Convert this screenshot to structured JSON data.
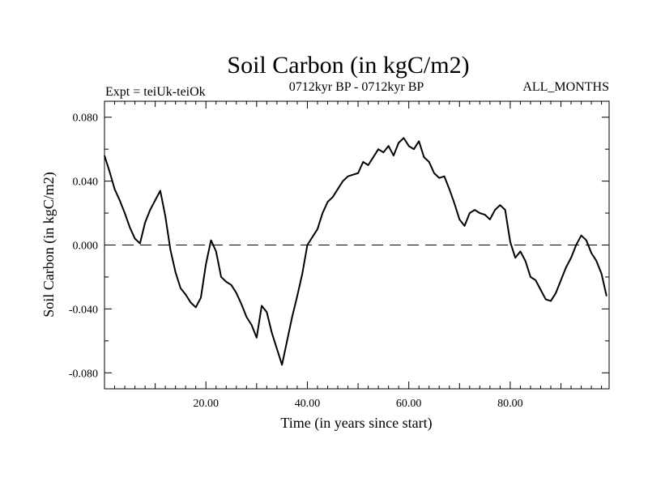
{
  "chart_data": {
    "type": "line",
    "title": "Soil Carbon (in kgC/m2)",
    "subtitle_left": "Expt = teiUk-teiOk",
    "subtitle_center": "0712kyr BP - 0712kyr BP",
    "subtitle_right": "ALL_MONTHS",
    "xlabel": "Time (in years since start)",
    "ylabel": "Soil Carbon (in kgC/m2)",
    "xlim": [
      0,
      99.5
    ],
    "ylim": [
      -0.09,
      0.09
    ],
    "xticks": [
      20,
      40,
      60,
      80
    ],
    "xtick_labels": [
      "20.00",
      "40.00",
      "60.00",
      "80.00"
    ],
    "yticks": [
      -0.08,
      -0.04,
      0.0,
      0.04,
      0.08
    ],
    "ytick_labels": [
      "-0.080",
      "-0.040",
      "0.000",
      "0.040",
      "0.080"
    ],
    "reference_line": {
      "y": 0.0,
      "style": "dashed"
    },
    "grid": false,
    "series": [
      {
        "color": "#000000",
        "x": [
          0,
          1,
          2,
          3,
          4,
          5,
          6,
          7,
          8,
          9,
          10,
          11,
          12,
          13,
          14,
          15,
          16,
          17,
          18,
          19,
          20,
          21,
          22,
          23,
          24,
          25,
          26,
          27,
          28,
          29,
          30,
          31,
          32,
          33,
          34,
          35,
          36,
          37,
          38,
          39,
          40,
          41,
          42,
          43,
          44,
          45,
          46,
          47,
          48,
          49,
          50,
          51,
          52,
          53,
          54,
          55,
          56,
          57,
          58,
          59,
          60,
          61,
          62,
          63,
          64,
          65,
          66,
          67,
          68,
          69,
          70,
          71,
          72,
          73,
          74,
          75,
          76,
          77,
          78,
          79,
          80,
          81,
          82,
          83,
          84,
          85,
          86,
          87,
          88,
          89,
          90,
          91,
          92,
          93,
          94,
          95,
          96,
          97,
          98,
          99
        ],
        "y": [
          0.056,
          0.046,
          0.035,
          0.028,
          0.02,
          0.011,
          0.004,
          0.001,
          0.014,
          0.022,
          0.028,
          0.034,
          0.018,
          -0.003,
          -0.017,
          -0.027,
          -0.031,
          -0.036,
          -0.039,
          -0.033,
          -0.012,
          0.003,
          -0.004,
          -0.02,
          -0.023,
          -0.025,
          -0.03,
          -0.037,
          -0.045,
          -0.05,
          -0.058,
          -0.038,
          -0.042,
          -0.055,
          -0.065,
          -0.075,
          -0.06,
          -0.045,
          -0.032,
          -0.018,
          0.0,
          0.005,
          0.01,
          0.02,
          0.027,
          0.03,
          0.035,
          0.04,
          0.043,
          0.044,
          0.045,
          0.052,
          0.05,
          0.055,
          0.06,
          0.058,
          0.062,
          0.056,
          0.064,
          0.067,
          0.062,
          0.06,
          0.065,
          0.055,
          0.052,
          0.045,
          0.042,
          0.043,
          0.035,
          0.026,
          0.016,
          0.012,
          0.02,
          0.022,
          0.02,
          0.019,
          0.016,
          0.022,
          0.025,
          0.022,
          0.002,
          -0.008,
          -0.004,
          -0.01,
          -0.02,
          -0.022,
          -0.028,
          -0.034,
          -0.035,
          -0.03,
          -0.022,
          -0.014,
          -0.008,
          0.0,
          0.006,
          0.003,
          -0.005,
          -0.01,
          -0.018,
          -0.032
        ]
      }
    ]
  }
}
